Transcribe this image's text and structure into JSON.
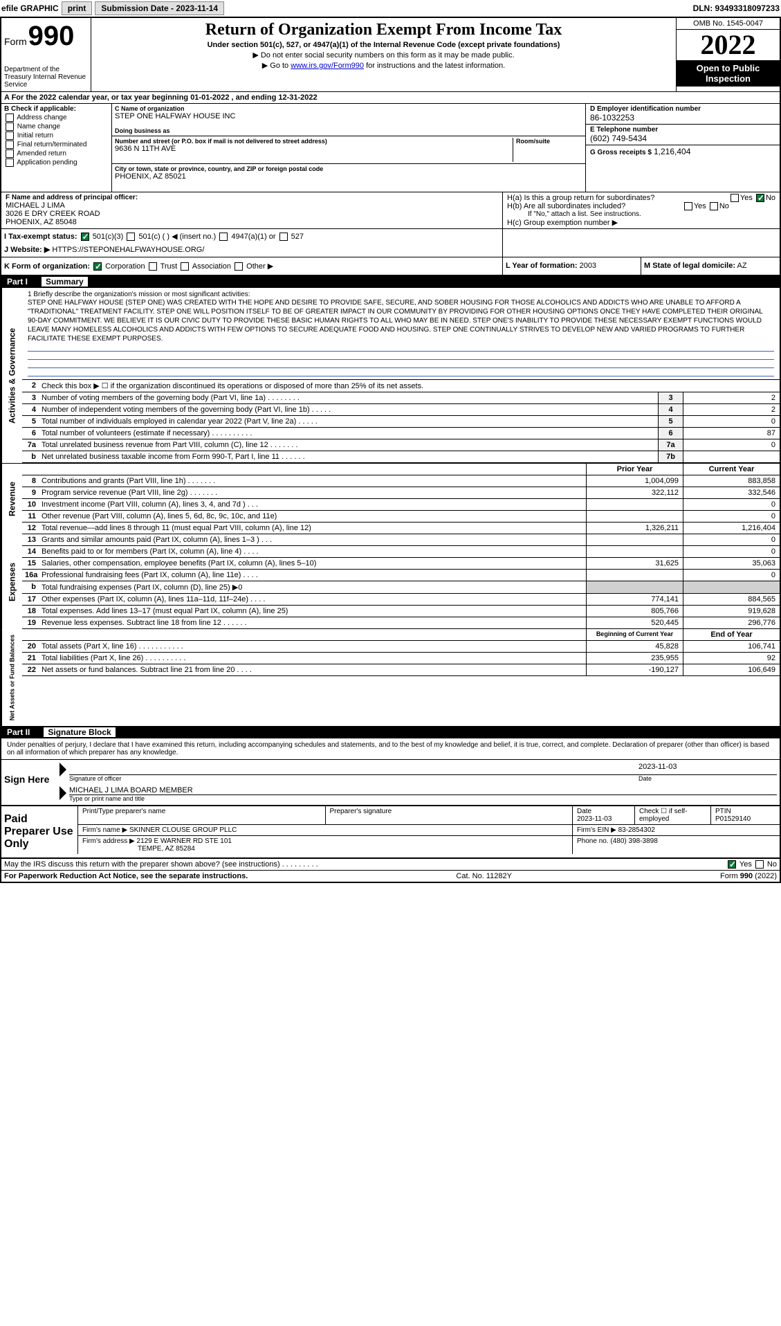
{
  "top": {
    "efile": "efile GRAPHIC",
    "print": "print",
    "sub_label": "Submission Date - 2023-11-14",
    "dln": "DLN: 93493318097233"
  },
  "header": {
    "form_word": "Form",
    "form_num": "990",
    "dept": "Department of the Treasury Internal Revenue Service",
    "title": "Return of Organization Exempt From Income Tax",
    "sub1": "Under section 501(c), 527, or 4947(a)(1) of the Internal Revenue Code (except private foundations)",
    "sub2": "▶ Do not enter social security numbers on this form as it may be made public.",
    "sub3_pre": "▶ Go to ",
    "sub3_link": "www.irs.gov/Form990",
    "sub3_post": " for instructions and the latest information.",
    "omb": "OMB No. 1545-0047",
    "year": "2022",
    "open": "Open to Public Inspection"
  },
  "taxyear": "A For the 2022 calendar year, or tax year beginning 01-01-2022  , and ending 12-31-2022",
  "b": {
    "label": "B Check if applicable:",
    "items": [
      "Address change",
      "Name change",
      "Initial return",
      "Final return/terminated",
      "Amended return",
      "Application pending"
    ]
  },
  "c": {
    "name_label": "C Name of organization",
    "name": "STEP ONE HALFWAY HOUSE INC",
    "dba_label": "Doing business as",
    "dba": "",
    "addr_label": "Number and street (or P.O. box if mail is not delivered to street address)",
    "room_label": "Room/suite",
    "addr": "9636 N 11TH AVE",
    "city_label": "City or town, state or province, country, and ZIP or foreign postal code",
    "city": "PHOENIX, AZ  85021"
  },
  "d": {
    "ein_label": "D Employer identification number",
    "ein": "86-1032253",
    "phone_label": "E Telephone number",
    "phone": "(602) 749-5434",
    "gross_label": "G Gross receipts $",
    "gross": "1,216,404"
  },
  "f": {
    "label": "F  Name and address of principal officer:",
    "name": "MICHAEL J LIMA",
    "addr1": "3026 E DRY CREEK ROAD",
    "addr2": "PHOENIX, AZ  85048"
  },
  "h": {
    "a": "H(a)  Is this a group return for subordinates?",
    "b": "H(b)  Are all subordinates included?",
    "note": "If \"No,\" attach a list. See instructions.",
    "c": "H(c)  Group exemption number ▶"
  },
  "i": {
    "label": "I   Tax-exempt status:",
    "opts": [
      "501(c)(3)",
      "501(c) (  ) ◀ (insert no.)",
      "4947(a)(1) or",
      "527"
    ]
  },
  "j": {
    "label": "J   Website: ▶",
    "val": "HTTPS://STEPONEHALFWAYHOUSE.ORG/"
  },
  "k": {
    "label": "K Form of organization:",
    "opts": [
      "Corporation",
      "Trust",
      "Association",
      "Other ▶"
    ]
  },
  "l": {
    "label": "L Year of formation:",
    "val": "2003"
  },
  "m": {
    "label": "M State of legal domicile:",
    "val": "AZ"
  },
  "part1": {
    "num": "Part I",
    "title": "Summary"
  },
  "mission": {
    "label": "1   Briefly describe the organization's mission or most significant activities:",
    "text": "STEP ONE HALFWAY HOUSE (STEP ONE) WAS CREATED WITH THE HOPE AND DESIRE TO PROVIDE SAFE, SECURE, AND SOBER HOUSING FOR THOSE ALCOHOLICS AND ADDICTS WHO ARE UNABLE TO AFFORD A \"TRADITIONAL\" TREATMENT FACILITY. STEP ONE WILL POSITION ITSELF TO BE OF GREATER IMPACT IN OUR COMMUNITY BY PROVIDING FOR OTHER HOUSING OPTIONS ONCE THEY HAVE COMPLETED THEIR ORIGINAL 90-DAY COMMITMENT. WE BELIEVE IT IS OUR CIVIC DUTY TO PROVIDE THESE BASIC HUMAN RIGHTS TO ALL WHO MAY BE IN NEED. STEP ONE'S INABILITY TO PROVIDE THESE NECESSARY EXEMPT FUNCTIONS WOULD LEAVE MANY HOMELESS ALCOHOLICS AND ADDICTS WITH FEW OPTIONS TO SECURE ADEQUATE FOOD AND HOUSING. STEP ONE CONTINUALLY STRIVES TO DEVELOP NEW AND VARIED PROGRAMS TO FURTHER FACILITATE THESE EXEMPT PURPOSES."
  },
  "gov_lines": [
    {
      "n": "2",
      "d": "Check this box ▶ ☐ if the organization discontinued its operations or disposed of more than 25% of its net assets.",
      "bn": "",
      "v": ""
    },
    {
      "n": "3",
      "d": "Number of voting members of the governing body (Part VI, line 1a)  .    .    .    .    .    .    .    .",
      "bn": "3",
      "v": "2"
    },
    {
      "n": "4",
      "d": "Number of independent voting members of the governing body (Part VI, line 1b)   .    .    .    .    .",
      "bn": "4",
      "v": "2"
    },
    {
      "n": "5",
      "d": "Total number of individuals employed in calendar year 2022 (Part V, line 2a)   .    .    .    .    .",
      "bn": "5",
      "v": "0"
    },
    {
      "n": "6",
      "d": "Total number of volunteers (estimate if necessary)  .    .    .    .    .    .    .    .    .    .",
      "bn": "6",
      "v": "87"
    },
    {
      "n": "7a",
      "d": "Total unrelated business revenue from Part VIII, column (C), line 12   .    .    .    .    .    .    .",
      "bn": "7a",
      "v": "0"
    },
    {
      "n": "b",
      "d": "Net unrelated business taxable income from Form 990-T, Part I, line 11   .    .    .    .    .    .",
      "bn": "7b",
      "v": ""
    }
  ],
  "rev_header": {
    "prior": "Prior Year",
    "curr": "Current Year"
  },
  "rev_lines": [
    {
      "n": "8",
      "d": "Contributions and grants (Part VIII, line 1h)   .    .    .    .    .    .    .",
      "p": "1,004,099",
      "c": "883,858"
    },
    {
      "n": "9",
      "d": "Program service revenue (Part VIII, line 2g)   .    .    .    .    .    .    .",
      "p": "322,112",
      "c": "332,546"
    },
    {
      "n": "10",
      "d": "Investment income (Part VIII, column (A), lines 3, 4, and 7d )   .    .    .",
      "p": "",
      "c": "0"
    },
    {
      "n": "11",
      "d": "Other revenue (Part VIII, column (A), lines 5, 6d, 8c, 9c, 10c, and 11e)",
      "p": "",
      "c": "0"
    },
    {
      "n": "12",
      "d": "Total revenue—add lines 8 through 11 (must equal Part VIII, column (A), line 12)",
      "p": "1,326,211",
      "c": "1,216,404"
    }
  ],
  "exp_lines": [
    {
      "n": "13",
      "d": "Grants and similar amounts paid (Part IX, column (A), lines 1–3 )   .    .    .",
      "p": "",
      "c": "0"
    },
    {
      "n": "14",
      "d": "Benefits paid to or for members (Part IX, column (A), line 4)   .    .    .    .",
      "p": "",
      "c": "0"
    },
    {
      "n": "15",
      "d": "Salaries, other compensation, employee benefits (Part IX, column (A), lines 5–10)",
      "p": "31,625",
      "c": "35,063"
    },
    {
      "n": "16a",
      "d": "Professional fundraising fees (Part IX, column (A), line 11e)   .    .    .    .",
      "p": "",
      "c": "0"
    },
    {
      "n": "b",
      "d": "Total fundraising expenses (Part IX, column (D), line 25) ▶0",
      "p": "GREY",
      "c": "GREY"
    },
    {
      "n": "17",
      "d": "Other expenses (Part IX, column (A), lines 11a–11d, 11f–24e)   .    .    .    .",
      "p": "774,141",
      "c": "884,565"
    },
    {
      "n": "18",
      "d": "Total expenses. Add lines 13–17 (must equal Part IX, column (A), line 25)",
      "p": "805,766",
      "c": "919,628"
    },
    {
      "n": "19",
      "d": "Revenue less expenses. Subtract line 18 from line 12   .    .    .    .    .    .",
      "p": "520,445",
      "c": "296,776"
    }
  ],
  "na_header": {
    "prior": "Beginning of Current Year",
    "curr": "End of Year"
  },
  "na_lines": [
    {
      "n": "20",
      "d": "Total assets (Part X, line 16)   .    .    .    .    .    .    .    .    .    .    .",
      "p": "45,828",
      "c": "106,741"
    },
    {
      "n": "21",
      "d": "Total liabilities (Part X, line 26)   .    .    .    .    .    .    .    .    .    .",
      "p": "235,955",
      "c": "92"
    },
    {
      "n": "22",
      "d": "Net assets or fund balances. Subtract line 21 from line 20   .    .    .    .",
      "p": "-190,127",
      "c": "106,649"
    }
  ],
  "part2": {
    "num": "Part II",
    "title": "Signature Block"
  },
  "sig": {
    "intro": "Under penalties of perjury, I declare that I have examined this return, including accompanying schedules and statements, and to the best of my knowledge and belief, it is true, correct, and complete. Declaration of preparer (other than officer) is based on all information of which preparer has any knowledge.",
    "sign_here": "Sign Here",
    "date": "2023-11-03",
    "sig_label": "Signature of officer",
    "date_label": "Date",
    "name": "MICHAEL J LIMA  BOARD MEMBER",
    "name_label": "Type or print name and title"
  },
  "prep": {
    "title": "Paid Preparer Use Only",
    "h1": "Print/Type preparer's name",
    "h2": "Preparer's signature",
    "h3": "Date",
    "h3v": "2023-11-03",
    "h4": "Check ☐ if self-employed",
    "h5": "PTIN",
    "h5v": "P01529140",
    "firm_label": "Firm's name    ▶",
    "firm": "SKINNER CLOUSE GROUP PLLC",
    "ein_label": "Firm's EIN ▶",
    "ein": "83-2854302",
    "addr_label": "Firm's address ▶",
    "addr1": "2129 E WARNER RD STE 101",
    "addr2": "TEMPE, AZ  85284",
    "phone_label": "Phone no.",
    "phone": "(480) 398-3898"
  },
  "discuss": "May the IRS discuss this return with the preparer shown above? (see instructions)   .    .    .    .    .    .    .    .    .",
  "footer": {
    "left": "For Paperwork Reduction Act Notice, see the separate instructions.",
    "mid": "Cat. No. 11282Y",
    "right": "Form 990 (2022)"
  },
  "side_labels": {
    "gov": "Activities & Governance",
    "rev": "Revenue",
    "exp": "Expenses",
    "na": "Net Assets or Fund Balances"
  },
  "colors": {
    "link": "#0000cc",
    "check": "#0a7a3a",
    "blueline": "#4060c0",
    "grey": "#d0d0d0"
  }
}
